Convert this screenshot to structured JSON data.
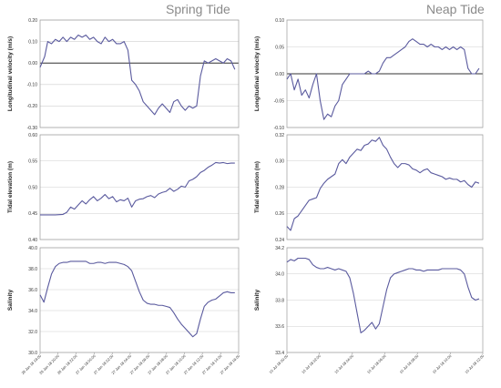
{
  "titles": {
    "left": "Spring Tide",
    "right": "Neap Tide"
  },
  "chart_data": [
    {
      "id": "spring-velocity",
      "type": "line",
      "column": "left",
      "row": 0,
      "ylabel": "Longitudinal velocity (m/s)",
      "ylim": [
        -0.3,
        0.2
      ],
      "yticks": [
        0.2,
        0.1,
        0.0,
        -0.1,
        -0.2,
        -0.3
      ],
      "ytick_labels": [
        "0.20",
        "0.10",
        "0.00",
        "-0.10",
        "-0.20",
        "-0.30"
      ],
      "zero_line": 0,
      "grid": true,
      "x": [
        0,
        1.2,
        2,
        3,
        4,
        5,
        6,
        7,
        8,
        9,
        10,
        11,
        12,
        13,
        14,
        15,
        16,
        17,
        18,
        19,
        20,
        21,
        22,
        23,
        24,
        25,
        26,
        27,
        28,
        29,
        30,
        31,
        32,
        33,
        34,
        35,
        36,
        37,
        38,
        39,
        40,
        41,
        42,
        43,
        44,
        45,
        46,
        47,
        48,
        49,
        50,
        51
      ],
      "values": [
        -0.02,
        0.03,
        0.1,
        0.09,
        0.11,
        0.1,
        0.12,
        0.1,
        0.12,
        0.11,
        0.13,
        0.12,
        0.13,
        0.11,
        0.12,
        0.1,
        0.09,
        0.12,
        0.1,
        0.11,
        0.09,
        0.09,
        0.1,
        0.06,
        -0.08,
        -0.1,
        -0.13,
        -0.18,
        -0.2,
        -0.22,
        -0.24,
        -0.21,
        -0.19,
        -0.21,
        -0.23,
        -0.18,
        -0.17,
        -0.2,
        -0.22,
        -0.2,
        -0.21,
        -0.2,
        -0.06,
        0.01,
        0.0,
        0.01,
        0.02,
        0.01,
        0.0,
        0.02,
        0.01,
        -0.03
      ]
    },
    {
      "id": "spring-elevation",
      "type": "line",
      "column": "left",
      "row": 1,
      "ylabel": "Tidal elevation (m)",
      "ylim": [
        0.4,
        0.6
      ],
      "yticks": [
        0.6,
        0.55,
        0.5,
        0.45,
        0.4
      ],
      "ytick_labels": [
        "0.60",
        "0.55",
        "0.50",
        "0.45",
        "0.40"
      ],
      "grid": true,
      "x": [
        0,
        2,
        4,
        6,
        7,
        8,
        9,
        10,
        11,
        12,
        13,
        14,
        15,
        16,
        17,
        18,
        19,
        20,
        21,
        22,
        23,
        24,
        25,
        26,
        27,
        28,
        29,
        30,
        31,
        32,
        33,
        34,
        35,
        36,
        37,
        38,
        39,
        40,
        41,
        42,
        43,
        44,
        45,
        46,
        47,
        48,
        49,
        50,
        51
      ],
      "values": [
        0.447,
        0.447,
        0.447,
        0.448,
        0.452,
        0.462,
        0.458,
        0.466,
        0.474,
        0.468,
        0.476,
        0.482,
        0.474,
        0.479,
        0.486,
        0.478,
        0.482,
        0.472,
        0.476,
        0.474,
        0.479,
        0.462,
        0.474,
        0.477,
        0.478,
        0.482,
        0.484,
        0.48,
        0.487,
        0.49,
        0.492,
        0.498,
        0.492,
        0.496,
        0.502,
        0.5,
        0.512,
        0.515,
        0.52,
        0.528,
        0.532,
        0.538,
        0.542,
        0.547,
        0.546,
        0.547,
        0.545,
        0.546,
        0.546
      ]
    },
    {
      "id": "spring-salinity",
      "type": "line",
      "column": "left",
      "row": 2,
      "ylabel": "Salinity",
      "ylim": [
        30.0,
        40.0
      ],
      "yticks": [
        40.0,
        38.0,
        36.0,
        34.0,
        32.0,
        30.0
      ],
      "ytick_labels": [
        "40.0",
        "38.0",
        "36.0",
        "34.0",
        "32.0",
        "30.0"
      ],
      "grid": true,
      "x": [
        0,
        1,
        2,
        3,
        4,
        5,
        6,
        7,
        8,
        9,
        10,
        11,
        12,
        13,
        14,
        15,
        16,
        17,
        18,
        19,
        20,
        21,
        22,
        23,
        24,
        25,
        26,
        27,
        28,
        29,
        30,
        31,
        32,
        33,
        34,
        35,
        36,
        37,
        38,
        39,
        40,
        41,
        42,
        43,
        44,
        45,
        46,
        47,
        48,
        49,
        50,
        51
      ],
      "values": [
        35.5,
        34.8,
        36.2,
        37.5,
        38.2,
        38.5,
        38.6,
        38.6,
        38.7,
        38.7,
        38.7,
        38.7,
        38.7,
        38.5,
        38.5,
        38.6,
        38.6,
        38.5,
        38.6,
        38.6,
        38.6,
        38.5,
        38.4,
        38.2,
        37.8,
        36.8,
        35.8,
        35.0,
        34.7,
        34.6,
        34.6,
        34.5,
        34.5,
        34.4,
        34.3,
        33.8,
        33.2,
        32.7,
        32.3,
        31.9,
        31.5,
        31.8,
        33.2,
        34.4,
        34.8,
        35.0,
        35.1,
        35.4,
        35.7,
        35.8,
        35.7,
        35.7
      ]
    },
    {
      "id": "neap-velocity",
      "type": "line",
      "column": "right",
      "row": 0,
      "ylabel": "Longitudinal velocity (m/s)",
      "ylim": [
        -0.1,
        0.1
      ],
      "yticks": [
        0.1,
        0.05,
        0.0,
        -0.05,
        -0.1
      ],
      "ytick_labels": [
        "0.10",
        "0.05",
        "0.00",
        "-0.05",
        "-0.10"
      ],
      "zero_line": 0,
      "grid": true,
      "x": [
        0,
        1,
        2,
        3,
        4,
        5,
        6,
        7,
        8,
        9,
        10,
        11,
        12,
        13,
        14,
        15,
        16,
        17,
        18,
        19,
        20,
        21,
        22,
        23,
        24,
        25,
        26,
        27,
        28,
        29,
        30,
        31,
        32,
        33,
        34,
        35,
        36,
        37,
        38,
        39,
        40,
        41,
        42,
        43,
        44,
        45,
        46,
        47,
        48,
        49,
        50,
        51,
        52
      ],
      "values": [
        -0.01,
        0.0,
        -0.03,
        -0.01,
        -0.04,
        -0.03,
        -0.045,
        -0.02,
        0.0,
        -0.05,
        -0.085,
        -0.075,
        -0.08,
        -0.06,
        -0.05,
        -0.02,
        -0.01,
        0.0,
        0.0,
        0.0,
        0.0,
        0.0,
        0.005,
        0.0,
        0.0,
        0.005,
        0.02,
        0.03,
        0.03,
        0.035,
        0.04,
        0.045,
        0.05,
        0.06,
        0.065,
        0.06,
        0.055,
        0.055,
        0.05,
        0.055,
        0.05,
        0.05,
        0.045,
        0.05,
        0.045,
        0.05,
        0.045,
        0.05,
        0.045,
        0.01,
        0.0,
        0.0,
        0.01
      ]
    },
    {
      "id": "neap-elevation",
      "type": "line",
      "column": "right",
      "row": 1,
      "ylabel": "Tidal elevation (m)",
      "ylim": [
        0.24,
        0.32
      ],
      "yticks": [
        0.32,
        0.3,
        0.28,
        0.26,
        0.24
      ],
      "ytick_labels": [
        "0.32",
        "0.30",
        "0.28",
        "0.26",
        "0.24"
      ],
      "grid": true,
      "x": [
        0,
        1,
        2,
        3,
        4,
        5,
        6,
        7,
        8,
        9,
        10,
        11,
        12,
        13,
        14,
        15,
        16,
        17,
        18,
        19,
        20,
        21,
        22,
        23,
        24,
        25,
        26,
        27,
        28,
        29,
        30,
        31,
        32,
        33,
        34,
        35,
        36,
        37,
        38,
        39,
        40,
        41,
        42,
        43,
        44,
        45,
        46,
        47,
        48,
        49,
        50,
        51,
        52
      ],
      "values": [
        0.25,
        0.247,
        0.256,
        0.258,
        0.262,
        0.266,
        0.27,
        0.271,
        0.272,
        0.279,
        0.283,
        0.286,
        0.288,
        0.29,
        0.298,
        0.301,
        0.298,
        0.303,
        0.306,
        0.309,
        0.308,
        0.312,
        0.313,
        0.316,
        0.315,
        0.318,
        0.312,
        0.309,
        0.303,
        0.298,
        0.295,
        0.298,
        0.298,
        0.297,
        0.294,
        0.293,
        0.291,
        0.293,
        0.294,
        0.291,
        0.29,
        0.289,
        0.288,
        0.286,
        0.287,
        0.286,
        0.286,
        0.284,
        0.285,
        0.282,
        0.28,
        0.284,
        0.283
      ]
    },
    {
      "id": "neap-salinity",
      "type": "line",
      "column": "right",
      "row": 2,
      "ylabel": "Salinity",
      "ylim": [
        33.4,
        34.2
      ],
      "yticks": [
        34.2,
        34.0,
        33.8,
        33.6,
        33.4
      ],
      "ytick_labels": [
        "34.2",
        "34.0",
        "33.8",
        "33.6",
        "33.4"
      ],
      "grid": true,
      "x": [
        0,
        1,
        2,
        3,
        4,
        5,
        6,
        7,
        8,
        9,
        10,
        11,
        12,
        13,
        14,
        15,
        16,
        17,
        18,
        19,
        20,
        21,
        22,
        23,
        24,
        25,
        26,
        27,
        28,
        29,
        30,
        31,
        32,
        33,
        34,
        35,
        36,
        37,
        38,
        39,
        40,
        41,
        42,
        43,
        44,
        45,
        46,
        47,
        48,
        49,
        50,
        51,
        52
      ],
      "values": [
        34.09,
        34.11,
        34.1,
        34.12,
        34.12,
        34.12,
        34.11,
        34.07,
        34.05,
        34.04,
        34.04,
        34.05,
        34.04,
        34.03,
        34.04,
        34.03,
        34.02,
        33.97,
        33.85,
        33.7,
        33.55,
        33.57,
        33.6,
        33.63,
        33.58,
        33.62,
        33.75,
        33.88,
        33.97,
        34.0,
        34.01,
        34.02,
        34.03,
        34.04,
        34.04,
        34.03,
        34.03,
        34.02,
        34.03,
        34.03,
        34.03,
        34.03,
        34.04,
        34.04,
        34.04,
        34.04,
        34.04,
        34.03,
        34.0,
        33.9,
        33.82,
        33.8,
        33.81
      ]
    }
  ],
  "x_axis": {
    "left": {
      "range": [
        0,
        52
      ],
      "ticks": [
        {
          "x": 0,
          "label": "26 Jan 18 19:00"
        },
        {
          "x": 4.7,
          "label": "26 Jan 18 20:00"
        },
        {
          "x": 9.4,
          "label": "26 Jan 18 22:00"
        },
        {
          "x": 14.2,
          "label": "27 Jan 18 00:00"
        },
        {
          "x": 18.9,
          "label": "27 Jan 18 02:00"
        },
        {
          "x": 23.6,
          "label": "27 Jan 18 04:00"
        },
        {
          "x": 28.4,
          "label": "27 Jan 18 06:00"
        },
        {
          "x": 33.1,
          "label": "27 Jan 18 08:00"
        },
        {
          "x": 37.8,
          "label": "27 Jan 18 10:00"
        },
        {
          "x": 42.5,
          "label": "27 Jan 18 12:00"
        },
        {
          "x": 47.3,
          "label": "27 Jan 18 14:00"
        },
        {
          "x": 52,
          "label": "27 Jan 18 16:00"
        }
      ]
    },
    "right": {
      "range": [
        0,
        53
      ],
      "ticks": [
        {
          "x": 0,
          "label": "10 Jul 18 00:00"
        },
        {
          "x": 8.8,
          "label": "10 Jul 18 02:00"
        },
        {
          "x": 17.7,
          "label": "10 Jul 18 04:00"
        },
        {
          "x": 26.5,
          "label": "10 Jul 18 06:00"
        },
        {
          "x": 35.3,
          "label": "10 Jul 18 08:00"
        },
        {
          "x": 44.2,
          "label": "10 Jul 18 10:00"
        },
        {
          "x": 53,
          "label": "10 Jul 18 12:00"
        }
      ]
    }
  },
  "colors": {
    "line": "#5a5a9e",
    "zero_line": "#333333",
    "grid": "#cfcfcf",
    "frame": "#9a9a9a",
    "title": "#8a8a8a"
  }
}
